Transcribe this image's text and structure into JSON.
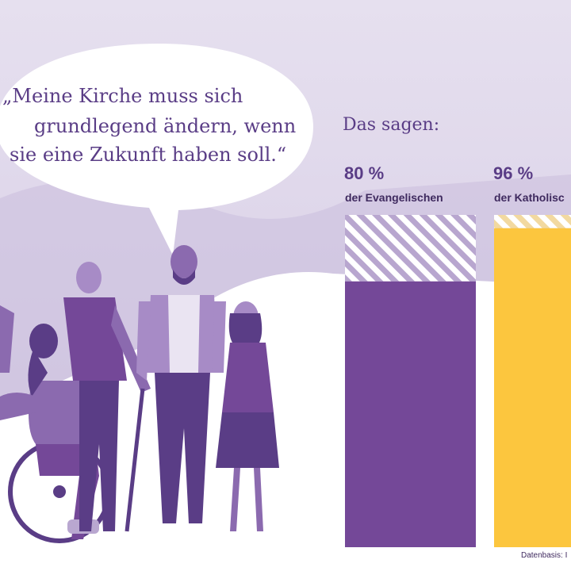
{
  "quote": {
    "lines": [
      "„Meine Kirche muss sich",
      "grundlegend ändern, wenn",
      "sie eine Zukunft haben soll.“"
    ]
  },
  "chart_data": {
    "type": "bar",
    "title": "Das sagen:",
    "categories": [
      "der Evangelischen",
      "der Katholisc"
    ],
    "values": [
      80,
      96
    ],
    "value_labels": [
      "80 %",
      "96 %"
    ],
    "ylim": [
      0,
      100
    ],
    "colors": [
      "#744898",
      "#fcc63e"
    ],
    "hatch_colors": [
      "#b8a6cf",
      "#f2d9a0"
    ]
  },
  "source": "Datenbasis: I",
  "colors": {
    "background": "#ddd5ea",
    "purple_dark": "#5a3d86",
    "purple_mid": "#744898",
    "yellow": "#fcc63e"
  }
}
